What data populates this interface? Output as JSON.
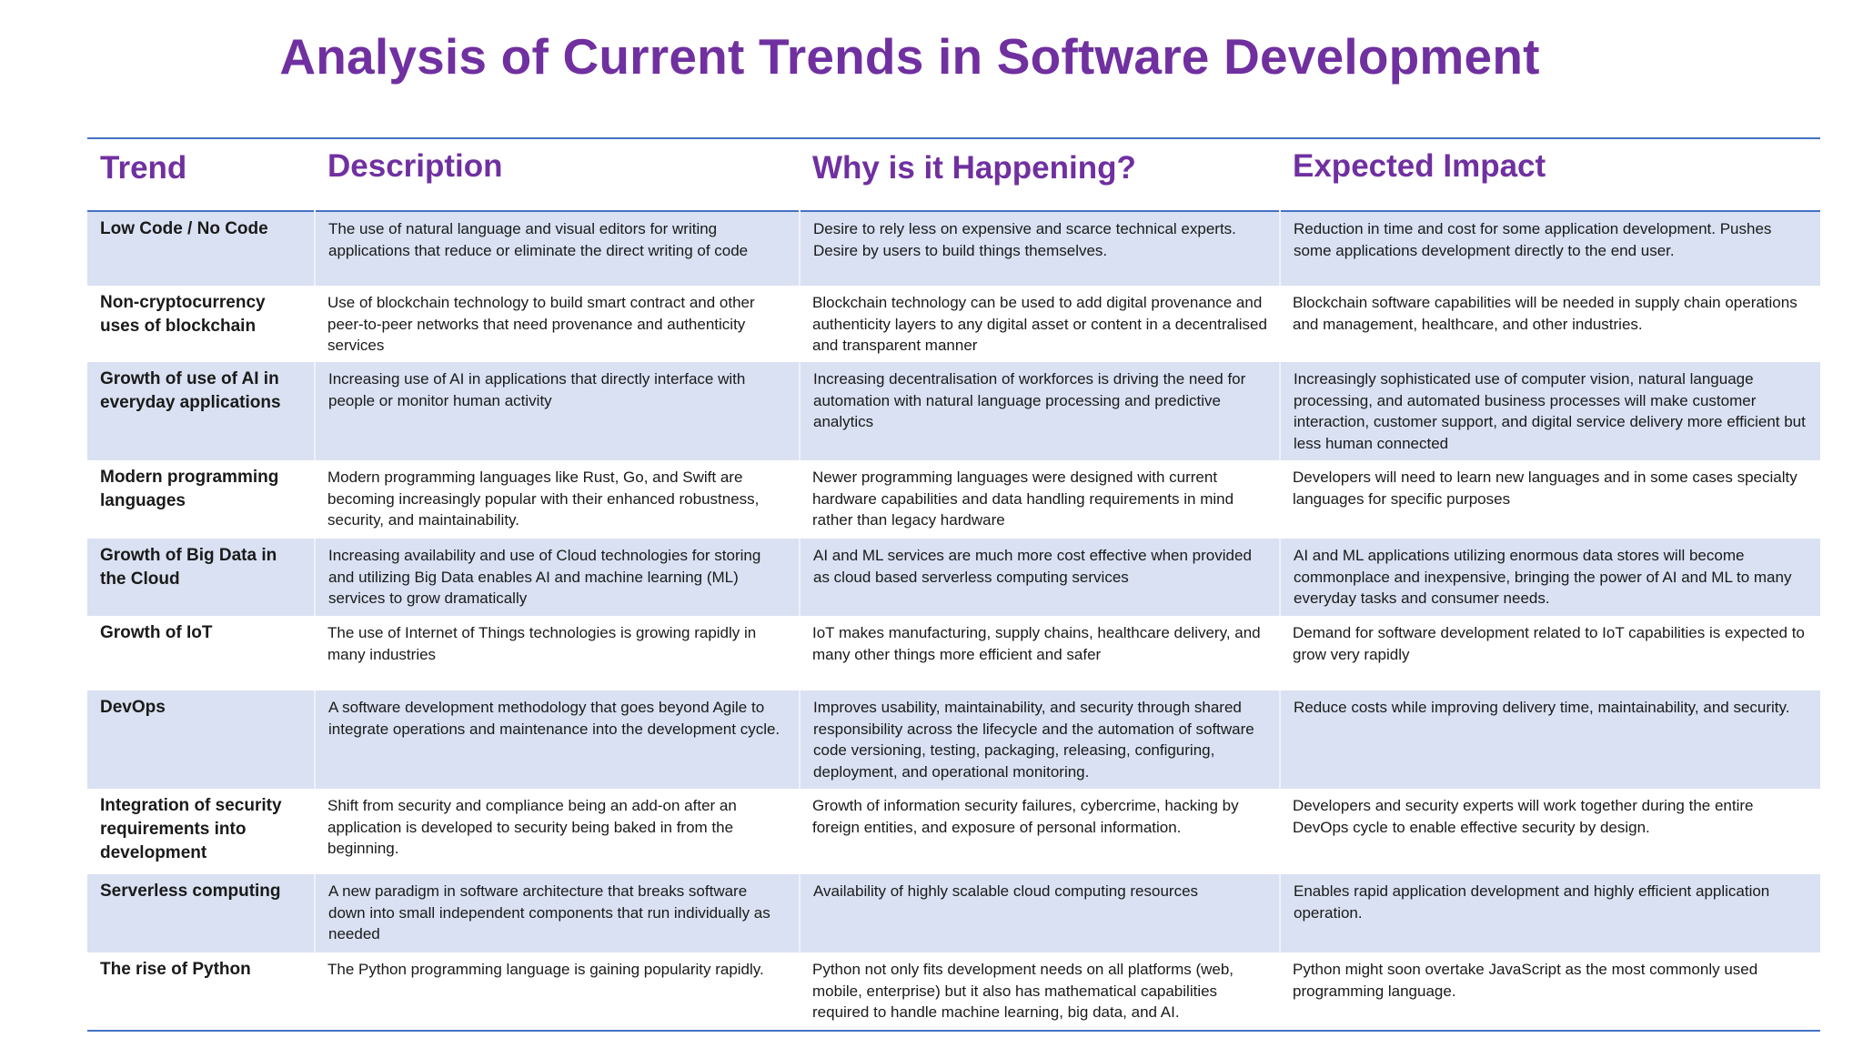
{
  "title": "Analysis of Current Trends in Software Development",
  "columns": {
    "trend": "Trend",
    "description": "Description",
    "why": "Why is it Happening?",
    "impact": "Expected Impact"
  },
  "rows": [
    {
      "trend": "Low Code / No Code",
      "description": "The use of natural language and visual editors for writing applications that reduce or eliminate the direct writing of code",
      "why": "Desire to rely less on expensive and scarce technical experts. Desire by users to build things themselves.",
      "impact": "Reduction in time and cost for some application development.  Pushes some applications development directly to the end user."
    },
    {
      "trend": "Non-cryptocurrency uses of blockchain",
      "description": "Use of blockchain technology to build smart contract and other peer-to-peer networks that need provenance and authenticity services",
      "why": "Blockchain technology can be used to add digital provenance and authenticity layers to any digital asset or content in a decentralised and transparent manner",
      "impact": "Blockchain software capabilities will be needed in supply chain operations and management, healthcare, and other industries."
    },
    {
      "trend": "Growth of use of AI in everyday applications",
      "description": "Increasing use of AI in applications that directly interface with people or monitor human activity",
      "why": "Increasing decentralisation of workforces is driving the need for automation with natural language processing and predictive analytics",
      "impact": "Increasingly sophisticated use of computer vision, natural language processing, and automated business processes will make customer interaction, customer support, and digital service delivery more efficient but less human connected"
    },
    {
      "trend": "Modern programming languages",
      "description": "Modern programming languages like Rust, Go, and Swift are becoming increasingly popular with their enhanced robustness, security, and maintainability.",
      "why": "Newer programming languages were designed with current hardware capabilities and data handling requirements in mind rather than legacy hardware",
      "impact": "Developers will need to learn new languages and in some cases specialty languages for specific purposes"
    },
    {
      "trend": "Growth of Big Data in the Cloud",
      "description": "Increasing availability and use of Cloud technologies for storing and utilizing Big Data enables AI and machine learning (ML) services to grow dramatically",
      "why": "AI and ML services are much more cost effective when provided as cloud based serverless computing services",
      "impact": "AI and ML applications utilizing enormous data stores will become commonplace and inexpensive, bringing the power of AI and ML to many everyday tasks and consumer needs."
    },
    {
      "trend": "Growth of IoT",
      "description": "The use of Internet of Things technologies is growing rapidly in many industries",
      "why": "IoT makes manufacturing, supply chains, healthcare delivery, and many other things more efficient and safer",
      "impact": "Demand for software development related to IoT capabilities is expected to grow very rapidly"
    },
    {
      "trend": "DevOps",
      "description": "A software development methodology that goes beyond Agile to integrate operations and maintenance into the development cycle.",
      "why": "Improves usability, maintainability, and security through shared responsibility across the lifecycle and the automation of software code versioning, testing, packaging, releasing, configuring, deployment, and operational monitoring.",
      "impact": "Reduce costs while improving delivery time, maintainability, and security."
    },
    {
      "trend": "Integration of security requirements into development",
      "description": "Shift from security and compliance being an add-on after an application is developed to security being baked in from the beginning.",
      "why": "Growth of information security failures, cybercrime, hacking by foreign entities, and exposure of personal information.",
      "impact": "Developers and security experts will work together during the entire DevOps cycle to enable effective security by design."
    },
    {
      "trend": "Serverless computing",
      "description": "A new paradigm in software architecture that breaks software down into small independent components that run individually as needed",
      "why": "Availability of highly scalable cloud computing resources",
      "impact": "Enables rapid application development and highly efficient application operation."
    },
    {
      "trend": "The rise of Python",
      "description": "The Python programming language is gaining popularity rapidly.",
      "why": "Python not only fits development needs on all platforms (web, mobile, enterprise) but it also has mathematical capabilities required to handle machine learning, big data, and AI.",
      "impact": "Python might soon overtake JavaScript as the most commonly used programming language."
    }
  ]
}
